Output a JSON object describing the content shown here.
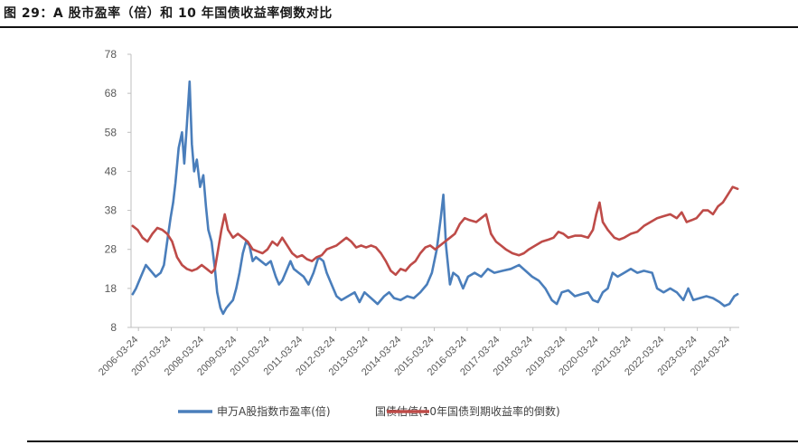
{
  "title": "图 29：A 股市盈率（倍）和 10 年国债收益率倒数对比",
  "chart_data": {
    "type": "line",
    "ylim": [
      8,
      78
    ],
    "yticks": [
      8,
      18,
      28,
      38,
      48,
      58,
      68,
      78
    ],
    "xticks": [
      "2006-03-24",
      "2007-03-24",
      "2008-03-24",
      "2009-03-24",
      "2010-03-24",
      "2011-03-24",
      "2012-03-24",
      "2013-03-24",
      "2014-03-24",
      "2015-03-24",
      "2016-03-24",
      "2017-03-24",
      "2018-03-24",
      "2019-03-24",
      "2020-03-24",
      "2021-03-24",
      "2022-03-24",
      "2023-03-24",
      "2024-03-24"
    ],
    "grid": false,
    "legend_position": "bottom",
    "series": [
      {
        "name": "申万A股指数市盈率(倍)",
        "color": "#4a7ebb",
        "points": [
          [
            2006.05,
            16.5
          ],
          [
            2006.15,
            18
          ],
          [
            2006.3,
            21
          ],
          [
            2006.45,
            24
          ],
          [
            2006.6,
            22.5
          ],
          [
            2006.75,
            21
          ],
          [
            2006.9,
            22
          ],
          [
            2007.0,
            24
          ],
          [
            2007.1,
            30
          ],
          [
            2007.2,
            36
          ],
          [
            2007.28,
            40
          ],
          [
            2007.35,
            45
          ],
          [
            2007.45,
            54
          ],
          [
            2007.55,
            58
          ],
          [
            2007.62,
            50
          ],
          [
            2007.7,
            60
          ],
          [
            2007.78,
            71
          ],
          [
            2007.85,
            55
          ],
          [
            2007.92,
            48
          ],
          [
            2008.0,
            51
          ],
          [
            2008.1,
            44
          ],
          [
            2008.2,
            47
          ],
          [
            2008.28,
            39
          ],
          [
            2008.35,
            33
          ],
          [
            2008.45,
            30
          ],
          [
            2008.55,
            23
          ],
          [
            2008.62,
            17
          ],
          [
            2008.72,
            13
          ],
          [
            2008.8,
            11.5
          ],
          [
            2008.9,
            13
          ],
          [
            2009.0,
            14
          ],
          [
            2009.1,
            15
          ],
          [
            2009.2,
            18
          ],
          [
            2009.3,
            22
          ],
          [
            2009.4,
            27
          ],
          [
            2009.5,
            30
          ],
          [
            2009.6,
            29
          ],
          [
            2009.7,
            25
          ],
          [
            2009.8,
            26
          ],
          [
            2009.95,
            25
          ],
          [
            2010.1,
            24
          ],
          [
            2010.25,
            25
          ],
          [
            2010.4,
            21
          ],
          [
            2010.5,
            19
          ],
          [
            2010.6,
            20
          ],
          [
            2010.75,
            23
          ],
          [
            2010.85,
            25
          ],
          [
            2010.95,
            23
          ],
          [
            2011.1,
            22
          ],
          [
            2011.25,
            21
          ],
          [
            2011.4,
            19
          ],
          [
            2011.55,
            22
          ],
          [
            2011.7,
            26
          ],
          [
            2011.85,
            25
          ],
          [
            2011.95,
            22
          ],
          [
            2012.1,
            19
          ],
          [
            2012.25,
            16
          ],
          [
            2012.4,
            15
          ],
          [
            2012.6,
            16
          ],
          [
            2012.8,
            17
          ],
          [
            2012.95,
            14.5
          ],
          [
            2013.1,
            17
          ],
          [
            2013.3,
            15.5
          ],
          [
            2013.5,
            14
          ],
          [
            2013.7,
            16
          ],
          [
            2013.85,
            17
          ],
          [
            2014.0,
            15.5
          ],
          [
            2014.2,
            15
          ],
          [
            2014.4,
            16
          ],
          [
            2014.6,
            15.5
          ],
          [
            2014.8,
            17
          ],
          [
            2015.0,
            19
          ],
          [
            2015.15,
            22
          ],
          [
            2015.3,
            28
          ],
          [
            2015.42,
            36
          ],
          [
            2015.5,
            42
          ],
          [
            2015.58,
            29
          ],
          [
            2015.7,
            19
          ],
          [
            2015.8,
            22
          ],
          [
            2015.95,
            21
          ],
          [
            2016.1,
            18
          ],
          [
            2016.25,
            21
          ],
          [
            2016.45,
            22
          ],
          [
            2016.65,
            21
          ],
          [
            2016.85,
            23
          ],
          [
            2017.05,
            22
          ],
          [
            2017.3,
            22.5
          ],
          [
            2017.55,
            23
          ],
          [
            2017.8,
            24
          ],
          [
            2018.0,
            22.5
          ],
          [
            2018.2,
            21
          ],
          [
            2018.4,
            20
          ],
          [
            2018.6,
            18
          ],
          [
            2018.8,
            15
          ],
          [
            2018.95,
            14
          ],
          [
            2019.1,
            17
          ],
          [
            2019.3,
            17.5
          ],
          [
            2019.5,
            16
          ],
          [
            2019.7,
            16.5
          ],
          [
            2019.9,
            17
          ],
          [
            2020.05,
            15
          ],
          [
            2020.2,
            14.5
          ],
          [
            2020.35,
            17
          ],
          [
            2020.5,
            18
          ],
          [
            2020.65,
            22
          ],
          [
            2020.8,
            21
          ],
          [
            2021.0,
            22
          ],
          [
            2021.2,
            23
          ],
          [
            2021.4,
            22
          ],
          [
            2021.6,
            22.5
          ],
          [
            2021.85,
            22
          ],
          [
            2022.0,
            18
          ],
          [
            2022.2,
            17
          ],
          [
            2022.4,
            18
          ],
          [
            2022.6,
            17
          ],
          [
            2022.8,
            15
          ],
          [
            2022.95,
            18
          ],
          [
            2023.1,
            15
          ],
          [
            2023.3,
            15.5
          ],
          [
            2023.5,
            16
          ],
          [
            2023.7,
            15.5
          ],
          [
            2023.9,
            14.5
          ],
          [
            2024.05,
            13.5
          ],
          [
            2024.2,
            14
          ],
          [
            2024.35,
            16
          ],
          [
            2024.45,
            16.5
          ]
        ]
      },
      {
        "name": "国债估值(10年国债到期收益率的倒数)",
        "color": "#be4b48",
        "points": [
          [
            2006.05,
            34
          ],
          [
            2006.2,
            33
          ],
          [
            2006.35,
            31
          ],
          [
            2006.5,
            30
          ],
          [
            2006.65,
            32
          ],
          [
            2006.8,
            33.5
          ],
          [
            2006.95,
            33
          ],
          [
            2007.1,
            32
          ],
          [
            2007.25,
            30
          ],
          [
            2007.4,
            26
          ],
          [
            2007.55,
            24
          ],
          [
            2007.7,
            23
          ],
          [
            2007.85,
            22.5
          ],
          [
            2008.0,
            23
          ],
          [
            2008.15,
            24
          ],
          [
            2008.3,
            23
          ],
          [
            2008.45,
            22
          ],
          [
            2008.55,
            23
          ],
          [
            2008.65,
            28
          ],
          [
            2008.75,
            33
          ],
          [
            2008.85,
            37
          ],
          [
            2008.95,
            33
          ],
          [
            2009.1,
            31
          ],
          [
            2009.25,
            32
          ],
          [
            2009.4,
            31
          ],
          [
            2009.55,
            30
          ],
          [
            2009.7,
            28
          ],
          [
            2009.85,
            27.5
          ],
          [
            2010.0,
            27
          ],
          [
            2010.15,
            28
          ],
          [
            2010.3,
            30
          ],
          [
            2010.45,
            29
          ],
          [
            2010.6,
            31
          ],
          [
            2010.75,
            29
          ],
          [
            2010.9,
            27
          ],
          [
            2011.05,
            26
          ],
          [
            2011.2,
            26.5
          ],
          [
            2011.35,
            25.5
          ],
          [
            2011.5,
            25
          ],
          [
            2011.65,
            26
          ],
          [
            2011.8,
            26.5
          ],
          [
            2011.95,
            28
          ],
          [
            2012.1,
            28.5
          ],
          [
            2012.25,
            29
          ],
          [
            2012.4,
            30
          ],
          [
            2012.55,
            31
          ],
          [
            2012.7,
            30
          ],
          [
            2012.85,
            28.5
          ],
          [
            2013.0,
            29
          ],
          [
            2013.15,
            28.5
          ],
          [
            2013.3,
            29
          ],
          [
            2013.45,
            28.5
          ],
          [
            2013.6,
            27
          ],
          [
            2013.75,
            25
          ],
          [
            2013.9,
            22.5
          ],
          [
            2014.05,
            21.5
          ],
          [
            2014.2,
            23
          ],
          [
            2014.35,
            22.5
          ],
          [
            2014.5,
            24
          ],
          [
            2014.65,
            25
          ],
          [
            2014.8,
            27
          ],
          [
            2014.95,
            28.5
          ],
          [
            2015.1,
            29
          ],
          [
            2015.25,
            28
          ],
          [
            2015.4,
            29
          ],
          [
            2015.55,
            30
          ],
          [
            2015.7,
            31
          ],
          [
            2015.85,
            32
          ],
          [
            2016.0,
            34.5
          ],
          [
            2016.15,
            36
          ],
          [
            2016.3,
            35.5
          ],
          [
            2016.5,
            35
          ],
          [
            2016.65,
            36
          ],
          [
            2016.8,
            37
          ],
          [
            2016.95,
            32
          ],
          [
            2017.1,
            30
          ],
          [
            2017.25,
            29
          ],
          [
            2017.4,
            28
          ],
          [
            2017.6,
            27
          ],
          [
            2017.8,
            26.5
          ],
          [
            2017.95,
            27
          ],
          [
            2018.1,
            28
          ],
          [
            2018.3,
            29
          ],
          [
            2018.5,
            30
          ],
          [
            2018.7,
            30.5
          ],
          [
            2018.85,
            31
          ],
          [
            2019.0,
            32.5
          ],
          [
            2019.15,
            32
          ],
          [
            2019.3,
            31
          ],
          [
            2019.5,
            31.5
          ],
          [
            2019.7,
            31.5
          ],
          [
            2019.9,
            31
          ],
          [
            2020.05,
            33
          ],
          [
            2020.15,
            37
          ],
          [
            2020.25,
            40
          ],
          [
            2020.35,
            35
          ],
          [
            2020.5,
            33
          ],
          [
            2020.7,
            31
          ],
          [
            2020.85,
            30.5
          ],
          [
            2021.0,
            31
          ],
          [
            2021.2,
            32
          ],
          [
            2021.4,
            32.5
          ],
          [
            2021.6,
            34
          ],
          [
            2021.8,
            35
          ],
          [
            2022.0,
            36
          ],
          [
            2022.2,
            36.5
          ],
          [
            2022.4,
            37
          ],
          [
            2022.6,
            36
          ],
          [
            2022.75,
            37.5
          ],
          [
            2022.9,
            35
          ],
          [
            2023.05,
            35.5
          ],
          [
            2023.2,
            36
          ],
          [
            2023.4,
            38
          ],
          [
            2023.55,
            38
          ],
          [
            2023.7,
            37
          ],
          [
            2023.85,
            39
          ],
          [
            2024.0,
            40
          ],
          [
            2024.15,
            42
          ],
          [
            2024.3,
            44
          ],
          [
            2024.45,
            43.5
          ]
        ]
      }
    ]
  }
}
